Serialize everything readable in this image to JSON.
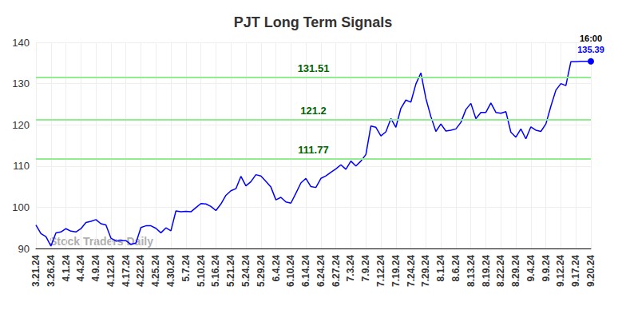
{
  "chart_data": {
    "type": "line",
    "title": "PJT Long Term Signals",
    "categories": [
      "3.21.24",
      null,
      null,
      "3.26.24",
      null,
      null,
      "4.1.24",
      null,
      null,
      "4.4.24",
      null,
      null,
      "4.9.24",
      null,
      null,
      "4.12.24",
      null,
      null,
      "4.17.24",
      null,
      null,
      "4.22.24",
      null,
      null,
      "4.25.24",
      null,
      null,
      "4.30.24",
      null,
      null,
      "5.7.24",
      null,
      null,
      "5.10.24",
      null,
      null,
      "5.16.24",
      null,
      null,
      "5.21.24",
      null,
      null,
      "5.24.24",
      null,
      null,
      "5.29.24",
      null,
      null,
      "6.4.24",
      null,
      null,
      "6.10.24",
      null,
      null,
      "6.14.24",
      null,
      null,
      "6.24.24",
      null,
      null,
      "6.27.24",
      null,
      null,
      "7.3.24",
      null,
      null,
      "7.9.24",
      null,
      null,
      "7.12.24",
      null,
      null,
      "7.19.24",
      null,
      null,
      "7.24.24",
      null,
      null,
      "7.29.24",
      null,
      null,
      "8.1.24",
      null,
      null,
      "8.6.24",
      null,
      null,
      "8.13.24",
      null,
      null,
      "8.19.24",
      null,
      null,
      "8.22.24",
      null,
      null,
      "8.29.24",
      null,
      null,
      "9.4.24",
      null,
      null,
      "9.9.24",
      null,
      null,
      "9.12.24",
      null,
      null,
      "9.17.24",
      null,
      null,
      "9.20.24"
    ],
    "values": [
      95.7,
      93.6,
      92.9,
      90.6,
      93.8,
      94.0,
      94.8,
      94.2,
      94.0,
      94.8,
      96.3,
      96.6,
      97.0,
      96.0,
      95.7,
      92.5,
      91.8,
      91.9,
      91.9,
      91.0,
      91.3,
      95.1,
      95.5,
      95.5,
      94.9,
      93.8,
      95.0,
      94.3,
      99.1,
      98.9,
      99.0,
      98.9,
      99.9,
      100.9,
      100.8,
      100.2,
      99.2,
      100.8,
      102.9,
      104.0,
      104.5,
      107.5,
      105.2,
      106.2,
      107.9,
      107.6,
      106.3,
      104.9,
      101.8,
      102.4,
      101.3,
      101.0,
      103.4,
      105.9,
      107.0,
      105.0,
      104.8,
      107.0,
      107.6,
      108.5,
      109.3,
      110.3,
      109.2,
      111.2,
      110.0,
      111.2,
      112.8,
      119.7,
      119.4,
      117.3,
      118.3,
      121.5,
      119.4,
      124.0,
      126.0,
      125.5,
      129.9,
      132.6,
      126.4,
      122.0,
      118.4,
      120.2,
      118.5,
      118.7,
      119.0,
      120.6,
      123.7,
      125.2,
      121.5,
      123.0,
      123.0,
      125.3,
      123.0,
      122.8,
      123.2,
      118.2,
      117.0,
      119.0,
      116.6,
      119.5,
      118.7,
      118.4,
      120.2,
      124.5,
      128.4,
      130.0,
      129.5,
      135.3,
      135.3,
      135.39,
      135.39,
      135.39
    ],
    "color": "#0000ff",
    "signal_lines": [
      131.51,
      121.2,
      111.77
    ],
    "signal_color": "#90ee90",
    "end_time": "16:00",
    "watermark": "Stock Traders Daily",
    "ylim": [
      90,
      140
    ],
    "yticks": [
      90,
      100,
      110,
      120,
      130,
      140
    ],
    "grid": true
  }
}
